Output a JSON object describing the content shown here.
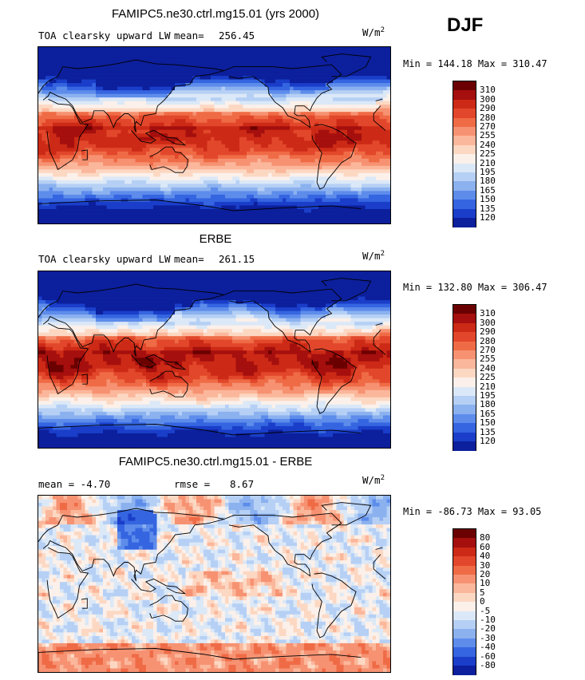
{
  "season": "DJF",
  "panels": [
    {
      "title": "FAMIPC5.ne30.ctrl.mg15.01 (yrs 2000)",
      "left_label": "TOA clearsky upward LW",
      "stat_label": "mean=",
      "stat_value": "256.45",
      "units_base": "W/m",
      "units_sup": "2",
      "minmax": "Min = 144.18 Max = 310.47",
      "levels": [
        "310",
        "300",
        "290",
        "280",
        "270",
        "255",
        "240",
        "225",
        "210",
        "195",
        "180",
        "165",
        "150",
        "135",
        "120"
      ],
      "colors": [
        "#6b0000",
        "#a50f0d",
        "#cc2a16",
        "#e2472b",
        "#ef6b46",
        "#f69272",
        "#fbb79b",
        "#fcd8c3",
        "#fbf0ea",
        "#dbe8f7",
        "#b6d0f5",
        "#8bb1ef",
        "#5d8ceb",
        "#3565e0",
        "#1a3ec9",
        "#0c1f9c"
      ],
      "field": "model"
    },
    {
      "title": "ERBE",
      "left_label": "TOA clearsky upward LW",
      "stat_label": "mean=",
      "stat_value": "261.15",
      "units_base": "W/m",
      "units_sup": "2",
      "minmax": "Min = 132.80 Max = 306.47",
      "levels": [
        "310",
        "300",
        "290",
        "280",
        "270",
        "255",
        "240",
        "225",
        "210",
        "195",
        "180",
        "165",
        "150",
        "135",
        "120"
      ],
      "colors": [
        "#6b0000",
        "#a50f0d",
        "#cc2a16",
        "#e2472b",
        "#ef6b46",
        "#f69272",
        "#fbb79b",
        "#fcd8c3",
        "#fbf0ea",
        "#dbe8f7",
        "#b6d0f5",
        "#8bb1ef",
        "#5d8ceb",
        "#3565e0",
        "#1a3ec9",
        "#0c1f9c"
      ],
      "field": "obs"
    },
    {
      "title": "FAMIPC5.ne30.ctrl.mg15.01 - ERBE",
      "left_label": "mean =   -4.70",
      "stat_label": "rmse =",
      "stat_value": "8.67",
      "units_base": "W/m",
      "units_sup": "2",
      "minmax": "Min = -86.73 Max =  93.05",
      "levels": [
        "80",
        "60",
        "40",
        "30",
        "20",
        "10",
        "5",
        "0",
        "-5",
        "-10",
        "-20",
        "-30",
        "-40",
        "-60",
        "-80"
      ],
      "colors": [
        "#6b0000",
        "#a50f0d",
        "#cc2a16",
        "#e2472b",
        "#ef6b46",
        "#f69272",
        "#fbb79b",
        "#fcd8c3",
        "#fbf0ea",
        "#dbe8f7",
        "#b6d0f5",
        "#8bb1ef",
        "#5d8ceb",
        "#3565e0",
        "#1a3ec9",
        "#0c1f9c"
      ],
      "field": "diff"
    }
  ]
}
